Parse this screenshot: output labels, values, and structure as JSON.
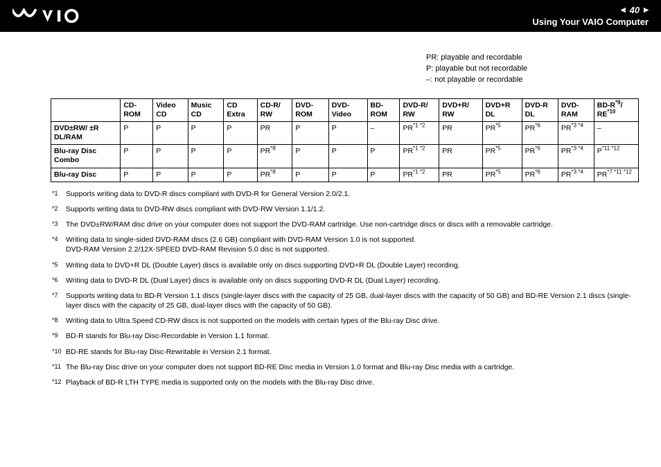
{
  "header": {
    "page_number": "40",
    "section_title": "Using Your VAIO Computer"
  },
  "legend": {
    "pr": "PR: playable and recordable",
    "p": "P: playable but not recordable",
    "dash": "–: not playable or recordable"
  },
  "table": {
    "columns": [
      "",
      "CD-ROM",
      "Video CD",
      "Music CD",
      "CD Extra",
      "CD-R/ RW",
      "DVD-ROM",
      "DVD-Video",
      "BD-ROM",
      "DVD-R/ RW",
      "DVD+R/ RW",
      "DVD+R DL",
      "DVD-R DL",
      "DVD-RAM",
      "BD-R*9/ RE*10"
    ],
    "col_super": [
      "",
      "",
      "",
      "",
      "",
      "",
      "",
      "",
      "",
      "",
      "",
      "",
      "",
      "",
      ""
    ],
    "rows": [
      {
        "head": "DVD±RW/ ±R DL/RAM",
        "cells": [
          "P",
          "P",
          "P",
          "P",
          "PR",
          "P",
          "P",
          "–",
          "PR",
          "PR",
          "PR",
          "PR",
          "PR",
          "–"
        ],
        "sups": [
          "",
          "",
          "",
          "",
          "",
          "",
          "",
          "",
          "*1 *2",
          "",
          "*5",
          "*6",
          "*3 *4",
          ""
        ]
      },
      {
        "head": "Blu-ray Disc Combo",
        "cells": [
          "P",
          "P",
          "P",
          "P",
          "PR",
          "P",
          "P",
          "P",
          "PR",
          "PR",
          "PR",
          "PR",
          "PR",
          "P"
        ],
        "sups": [
          "",
          "",
          "",
          "",
          "*8",
          "",
          "",
          "",
          "*1 *2",
          "",
          "*5",
          "*6",
          "*3 *4",
          "*11 *12"
        ]
      },
      {
        "head": "Blu-ray Disc",
        "cells": [
          "P",
          "P",
          "P",
          "P",
          "PR",
          "P",
          "P",
          "P",
          "PR",
          "PR",
          "PR",
          "PR",
          "PR",
          "PR"
        ],
        "sups": [
          "",
          "",
          "",
          "",
          "*8",
          "",
          "",
          "",
          "*1 *2",
          "",
          "*5",
          "*6",
          "*3 *4",
          "*7 *11 *12"
        ]
      }
    ]
  },
  "footnotes": [
    {
      "m": "*1",
      "t": "Supports writing data to DVD-R discs compliant with DVD-R for General Version 2.0/2.1."
    },
    {
      "m": "*2",
      "t": "Supports writing data to DVD-RW discs compliant with DVD-RW Version 1.1/1.2."
    },
    {
      "m": "*3",
      "t": "The DVD±RW/RAM disc drive on your computer does not support the DVD-RAM cartridge. Use non-cartridge discs or discs with a removable cartridge."
    },
    {
      "m": "*4",
      "t": "Writing data to single-sided DVD-RAM discs (2.6 GB) compliant with DVD-RAM Version 1.0 is not supported.\nDVD-RAM Version 2.2/12X-SPEED DVD-RAM Revision 5.0 disc is not supported."
    },
    {
      "m": "*5",
      "t": "Writing data to DVD+R DL (Double Layer) discs is available only on discs supporting DVD+R DL (Double Layer) recording."
    },
    {
      "m": "*6",
      "t": "Writing data to DVD-R DL (Dual Layer) discs is available only on discs supporting DVD-R DL (Dual Layer) recording."
    },
    {
      "m": "*7",
      "t": "Supports writing data to BD-R Version 1.1 discs (single-layer discs with the capacity of 25 GB, dual-layer discs with the capacity of 50 GB) and BD-RE Version 2.1 discs (single-layer discs with the capacity of 25 GB, dual-layer discs with the capacity of 50 GB)."
    },
    {
      "m": "*8",
      "t": "Writing data to Ultra Speed CD-RW discs is not supported on the models with certain types of the Blu-ray Disc drive."
    },
    {
      "m": "*9",
      "t": "BD-R stands for Blu-ray Disc-Recordable in Version 1.1 format."
    },
    {
      "m": "*10",
      "t": "BD-RE stands for Blu-ray Disc-Rewritable in Version 2.1 format."
    },
    {
      "m": "*11",
      "t": "The Blu-ray Disc drive on your computer does not support BD-RE Disc media in Version 1.0 format and Blu-ray Disc media with a cartridge."
    },
    {
      "m": "*12",
      "t": "Playback of BD-R LTH TYPE media is supported only on the models with the Blu-ray Disc drive."
    }
  ]
}
